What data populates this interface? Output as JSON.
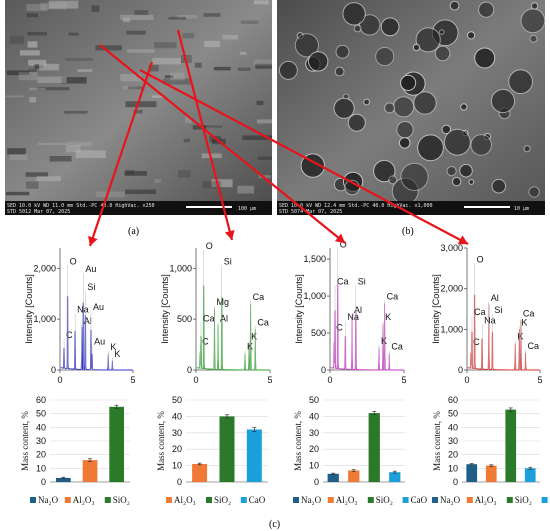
{
  "colors": {
    "arrow": "#e8141b",
    "spectra": [
      "#3333cc",
      "#2ea82e",
      "#cc33cc",
      "#e03030"
    ],
    "oxides": {
      "Na2O": "#1f5f87",
      "Al2O3": "#f07a35",
      "SiO2": "#2a7a2a",
      "CaO": "#1ba0dc"
    }
  },
  "sem": {
    "a": {
      "info_line1": [
        "SED",
        "10.0 kV",
        "WD 11.0 mm",
        "Std.-PC 40.0",
        "HighVac.",
        "x250"
      ],
      "info_line2": [
        "STD",
        "5012",
        "Mar 07, 2025"
      ],
      "scale_bar": "100 μm"
    },
    "b": {
      "info_line1": [
        "SED",
        "10.0 kV",
        "WD 12.4 mm",
        "Std.-PC 40.0",
        "HighVac.",
        "x1,000"
      ],
      "info_line2": [
        "STD",
        "5074",
        "Mar 07, 2025"
      ],
      "scale_bar": "10 μm"
    }
  },
  "labels": {
    "a": "(a)",
    "b": "(b)",
    "c": "(c)"
  },
  "chart_data": [
    {
      "type": "line",
      "title": "",
      "xlabel": "",
      "ylabel": "Intensity [Counts]",
      "xlim": [
        0,
        5
      ],
      "ylim": [
        0,
        2400
      ],
      "yticks": [
        0,
        1000,
        2000
      ],
      "ytick_labels": [
        "0",
        "1,000",
        "2,000"
      ],
      "xticks": [
        0,
        5
      ],
      "peaks": [
        {
          "label": "C",
          "x": 0.28,
          "y": 550
        },
        {
          "label": "O",
          "x": 0.52,
          "y": 2000
        },
        {
          "label": "Na",
          "x": 1.04,
          "y": 1050
        },
        {
          "label": "Au",
          "x": 1.6,
          "y": 1850
        },
        {
          "label": "Al",
          "x": 1.49,
          "y": 830
        },
        {
          "label": "Si",
          "x": 1.74,
          "y": 1500
        },
        {
          "label": "Au",
          "x": 2.12,
          "y": 1100
        },
        {
          "label": "Au",
          "x": 2.2,
          "y": 420
        },
        {
          "label": "K",
          "x": 3.31,
          "y": 310
        },
        {
          "label": "K",
          "x": 3.59,
          "y": 180
        }
      ]
    },
    {
      "type": "line",
      "title": "",
      "xlabel": "",
      "ylabel": "Intensity [Counts]",
      "xlim": [
        0,
        5
      ],
      "ylim": [
        0,
        1200
      ],
      "yticks": [
        0,
        500,
        1000
      ],
      "ytick_labels": [
        "0",
        "500",
        "1,000"
      ],
      "xticks": [
        0,
        5
      ],
      "peaks": [
        {
          "label": "C",
          "x": 0.28,
          "y": 210
        },
        {
          "label": "O",
          "x": 0.52,
          "y": 1150
        },
        {
          "label": "Ca",
          "x": 0.34,
          "y": 440
        },
        {
          "label": "Al",
          "x": 1.49,
          "y": 440
        },
        {
          "label": "Mg",
          "x": 1.25,
          "y": 600
        },
        {
          "label": "Si",
          "x": 1.74,
          "y": 1000
        },
        {
          "label": "K",
          "x": 3.31,
          "y": 160
        },
        {
          "label": "K",
          "x": 3.59,
          "y": 260
        },
        {
          "label": "Ca",
          "x": 3.69,
          "y": 650
        },
        {
          "label": "Ca",
          "x": 4.01,
          "y": 400
        }
      ]
    },
    {
      "type": "line",
      "title": "",
      "xlabel": "",
      "ylabel": "Intensity [Counts]",
      "xlim": [
        0,
        5
      ],
      "ylim": [
        0,
        1650
      ],
      "yticks": [
        0,
        500,
        1000,
        1500
      ],
      "ytick_labels": [
        "0",
        "500",
        "1,000",
        "1,500"
      ],
      "xticks": [
        0,
        5
      ],
      "peaks": [
        {
          "label": "C",
          "x": 0.28,
          "y": 480
        },
        {
          "label": "O",
          "x": 0.52,
          "y": 1600
        },
        {
          "label": "Ca",
          "x": 0.34,
          "y": 1100
        },
        {
          "label": "Na",
          "x": 1.04,
          "y": 620
        },
        {
          "label": "Al",
          "x": 1.49,
          "y": 720
        },
        {
          "label": "Si",
          "x": 1.74,
          "y": 1100
        },
        {
          "label": "K",
          "x": 3.31,
          "y": 300
        },
        {
          "label": "K",
          "x": 3.59,
          "y": 620
        },
        {
          "label": "Ca",
          "x": 3.69,
          "y": 900
        },
        {
          "label": "Ca",
          "x": 4.01,
          "y": 220
        }
      ]
    },
    {
      "type": "line",
      "title": "",
      "xlabel": "",
      "ylabel": "Intensity [Counts]",
      "xlim": [
        0,
        5
      ],
      "ylim": [
        0,
        3000
      ],
      "yticks": [
        0,
        1000,
        2000,
        3000
      ],
      "ytick_labels": [
        "0",
        "1,000",
        "2,000",
        "3,000"
      ],
      "xticks": [
        0,
        5
      ],
      "peaks": [
        {
          "label": "C",
          "x": 0.28,
          "y": 520
        },
        {
          "label": "O",
          "x": 0.52,
          "y": 2550
        },
        {
          "label": "Ca",
          "x": 0.34,
          "y": 1250
        },
        {
          "label": "Na",
          "x": 1.04,
          "y": 1050
        },
        {
          "label": "Al",
          "x": 1.49,
          "y": 1600
        },
        {
          "label": "Si",
          "x": 1.74,
          "y": 1300
        },
        {
          "label": "K",
          "x": 3.31,
          "y": 650
        },
        {
          "label": "K",
          "x": 3.59,
          "y": 1000
        },
        {
          "label": "Ca",
          "x": 3.69,
          "y": 1220
        },
        {
          "label": "Ca",
          "x": 4.01,
          "y": 420
        }
      ]
    },
    {
      "type": "bar",
      "ylabel": "Mass content, %",
      "ylim": [
        0,
        60
      ],
      "yticks": [
        0,
        10,
        20,
        30,
        40,
        50,
        60
      ],
      "categories": [
        "Na₂O",
        "Al₂O₃",
        "SiO₂"
      ],
      "color_keys": [
        "Na2O",
        "Al2O3",
        "SiO2"
      ],
      "values": [
        3,
        16,
        55
      ],
      "errors": [
        0.5,
        1,
        1.2
      ]
    },
    {
      "type": "bar",
      "ylabel": "Mass content, %",
      "ylim": [
        0,
        50
      ],
      "yticks": [
        0,
        10,
        20,
        30,
        40,
        50
      ],
      "categories": [
        "Al₂O₃",
        "SiO₂",
        "CaO"
      ],
      "color_keys": [
        "Al2O3",
        "SiO2",
        "CaO"
      ],
      "values": [
        11,
        40,
        32
      ],
      "errors": [
        0.5,
        1,
        1.2
      ]
    },
    {
      "type": "bar",
      "ylabel": "Mass content, %",
      "ylim": [
        0,
        50
      ],
      "yticks": [
        0,
        10,
        20,
        30,
        40,
        50
      ],
      "categories": [
        "Na₂O",
        "Al₂O₃",
        "SiO₂",
        "CaO"
      ],
      "color_keys": [
        "Na2O",
        "Al2O3",
        "SiO2",
        "CaO"
      ],
      "values": [
        5,
        7,
        42,
        6
      ],
      "errors": [
        0.4,
        0.5,
        1,
        0.6
      ]
    },
    {
      "type": "bar",
      "ylabel": "Mass content, %",
      "ylim": [
        0,
        60
      ],
      "yticks": [
        0,
        10,
        20,
        30,
        40,
        50,
        60
      ],
      "categories": [
        "Na₂O",
        "Al₂O₃",
        "SiO₂",
        "CaO"
      ],
      "color_keys": [
        "Na2O",
        "Al2O3",
        "SiO2",
        "CaO"
      ],
      "values": [
        13,
        12,
        53,
        10
      ],
      "errors": [
        0.5,
        0.6,
        1.2,
        0.8
      ]
    }
  ]
}
